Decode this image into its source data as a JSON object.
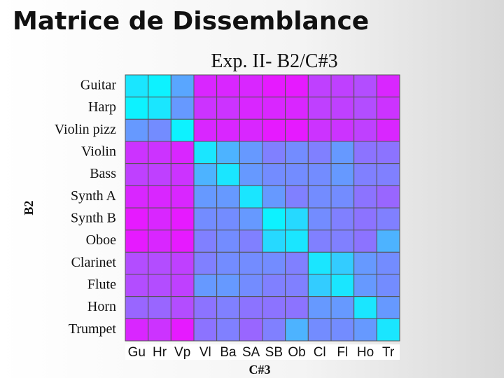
{
  "chart_data": {
    "type": "heatmap",
    "title": "Matrice de Dissemblance",
    "subtitle": "Exp. II- B2/C#3",
    "x_label": "C#3",
    "y_label": "B2",
    "rows": [
      "Guitar",
      "Harp",
      "Violin pizz",
      "Violin",
      "Bass",
      "Synth A",
      "Synth B",
      "Oboe",
      "Clarinet",
      "Flute",
      "Horn",
      "Trumpet"
    ],
    "columns": [
      "Gu",
      "Hr",
      "Vp",
      "Vl",
      "Ba",
      "SA",
      "SB",
      "Ob",
      "Cl",
      "Fl",
      "Ho",
      "Tr"
    ],
    "values": [
      [
        0.1,
        0.05,
        0.35,
        0.85,
        0.85,
        0.85,
        0.9,
        0.9,
        0.75,
        0.75,
        0.7,
        0.85
      ],
      [
        0.05,
        0.1,
        0.4,
        0.8,
        0.8,
        0.85,
        0.85,
        0.85,
        0.75,
        0.75,
        0.7,
        0.8
      ],
      [
        0.4,
        0.45,
        0.05,
        0.85,
        0.85,
        0.85,
        0.9,
        0.9,
        0.8,
        0.8,
        0.75,
        0.85
      ],
      [
        0.8,
        0.8,
        0.85,
        0.1,
        0.3,
        0.4,
        0.5,
        0.45,
        0.5,
        0.4,
        0.55,
        0.55
      ],
      [
        0.75,
        0.75,
        0.8,
        0.3,
        0.1,
        0.4,
        0.45,
        0.45,
        0.45,
        0.4,
        0.5,
        0.5
      ],
      [
        0.85,
        0.85,
        0.85,
        0.4,
        0.4,
        0.1,
        0.4,
        0.5,
        0.45,
        0.45,
        0.55,
        0.6
      ],
      [
        0.9,
        0.85,
        0.9,
        0.45,
        0.45,
        0.4,
        0.05,
        0.15,
        0.45,
        0.5,
        0.55,
        0.5
      ],
      [
        0.9,
        0.85,
        0.9,
        0.5,
        0.45,
        0.5,
        0.15,
        0.1,
        0.5,
        0.5,
        0.55,
        0.3
      ],
      [
        0.7,
        0.7,
        0.75,
        0.5,
        0.45,
        0.45,
        0.45,
        0.5,
        0.1,
        0.2,
        0.4,
        0.45
      ],
      [
        0.7,
        0.7,
        0.75,
        0.4,
        0.4,
        0.45,
        0.5,
        0.5,
        0.2,
        0.1,
        0.4,
        0.45
      ],
      [
        0.6,
        0.6,
        0.7,
        0.55,
        0.5,
        0.55,
        0.55,
        0.55,
        0.4,
        0.4,
        0.1,
        0.4
      ],
      [
        0.85,
        0.8,
        0.9,
        0.55,
        0.5,
        0.6,
        0.5,
        0.3,
        0.45,
        0.45,
        0.4,
        0.1
      ]
    ],
    "zlim": [
      0,
      1
    ],
    "colormap": [
      "#00ffff",
      "#ff00ff"
    ]
  }
}
